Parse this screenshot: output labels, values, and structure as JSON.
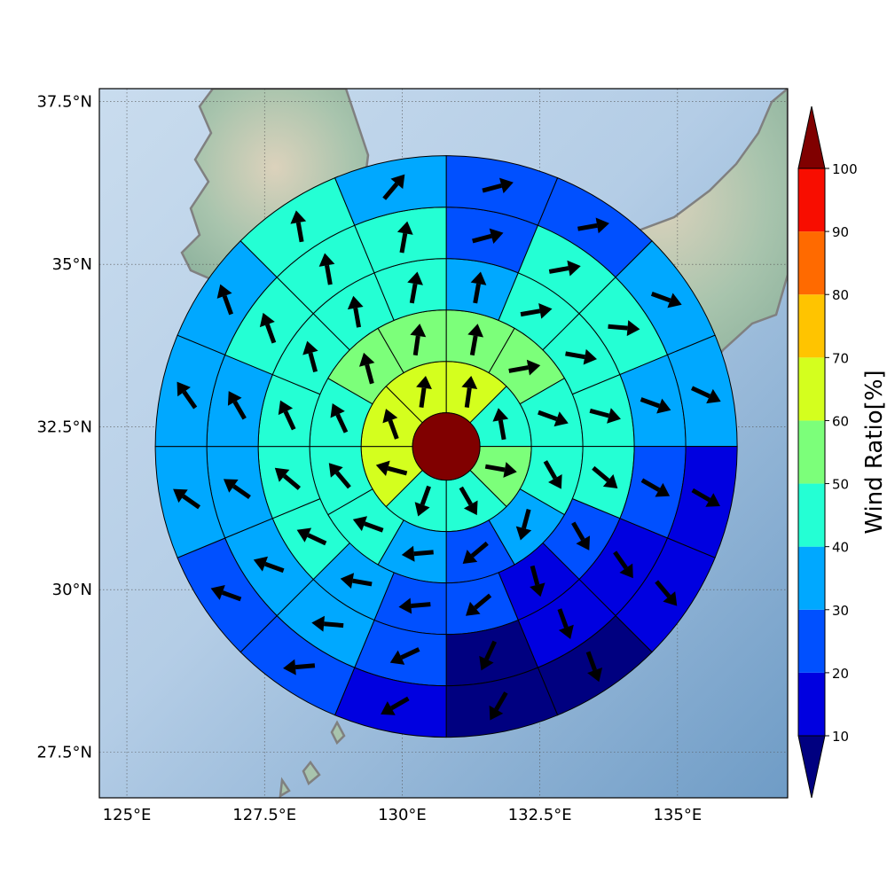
{
  "chart_data": {
    "type": "heatmap",
    "map_extent": {
      "lon": [
        124.5,
        137.0
      ],
      "lat": [
        26.8,
        37.7
      ]
    },
    "x_ticks": [
      "125°E",
      "127.5°E",
      "130°E",
      "132.5°E",
      "135°E"
    ],
    "x_tick_values": [
      125,
      127.5,
      130,
      132.5,
      135
    ],
    "y_ticks": [
      "37.5°N",
      "35°N",
      "32.5°N",
      "30°N",
      "27.5°N"
    ],
    "y_tick_values": [
      37.5,
      35,
      32.5,
      30,
      27.5
    ],
    "grid": true,
    "center": {
      "lon": 130.8,
      "lat": 32.2
    },
    "center_value": 100,
    "ring_count": 5,
    "sectors_per_ring": [
      8,
      12,
      16,
      16,
      16
    ],
    "rings": [
      {
        "values": [
          60,
          45,
          50,
          40,
          45,
          60,
          60,
          60
        ],
        "arrow_dir": [
          8,
          350,
          100,
          150,
          200,
          285,
          340,
          8
        ]
      },
      {
        "values": [
          55,
          55,
          45,
          40,
          30,
          20,
          35,
          40,
          40,
          45,
          55,
          55
        ],
        "arrow_dir": [
          10,
          80,
          110,
          150,
          195,
          230,
          265,
          290,
          320,
          335,
          345,
          8
        ]
      },
      {
        "values": [
          35,
          40,
          40,
          40,
          40,
          25,
          10,
          20,
          25,
          30,
          40,
          40,
          40,
          45,
          45,
          40
        ],
        "arrow_dir": [
          10,
          80,
          100,
          105,
          130,
          150,
          165,
          230,
          265,
          280,
          295,
          310,
          335,
          345,
          350,
          10
        ]
      },
      {
        "values": [
          20,
          40,
          40,
          30,
          20,
          10,
          10,
          5,
          20,
          30,
          30,
          35,
          35,
          40,
          40,
          40
        ],
        "arrow_dir": [
          75,
          80,
          95,
          110,
          120,
          145,
          160,
          205,
          245,
          275,
          290,
          305,
          330,
          340,
          350,
          10
        ]
      },
      {
        "values": [
          20,
          25,
          30,
          30,
          10,
          10,
          5,
          5,
          10,
          20,
          25,
          30,
          30,
          35,
          40,
          35
        ],
        "arrow_dir": [
          75,
          80,
          110,
          115,
          120,
          140,
          160,
          210,
          240,
          265,
          290,
          305,
          325,
          340,
          350,
          40
        ]
      }
    ],
    "colorbar": {
      "label": "Wind Ratio[%]",
      "ticks": [
        "10",
        "20",
        "30",
        "40",
        "50",
        "60",
        "70",
        "80",
        "90",
        "100"
      ],
      "levels": [
        10,
        20,
        30,
        40,
        50,
        60,
        70,
        80,
        90,
        100
      ],
      "colors": [
        "#0000e0",
        "#0050ff",
        "#00a8ff",
        "#24ffd4",
        "#7cff7a",
        "#d4ff1e",
        "#ffc400",
        "#ff6a00",
        "#f80d00"
      ],
      "under_color": "#000080",
      "over_color": "#800000",
      "extend": "both"
    },
    "land_color": "#8fb59c",
    "sea_color": "#9dbedc",
    "coast_color": "#808080"
  }
}
